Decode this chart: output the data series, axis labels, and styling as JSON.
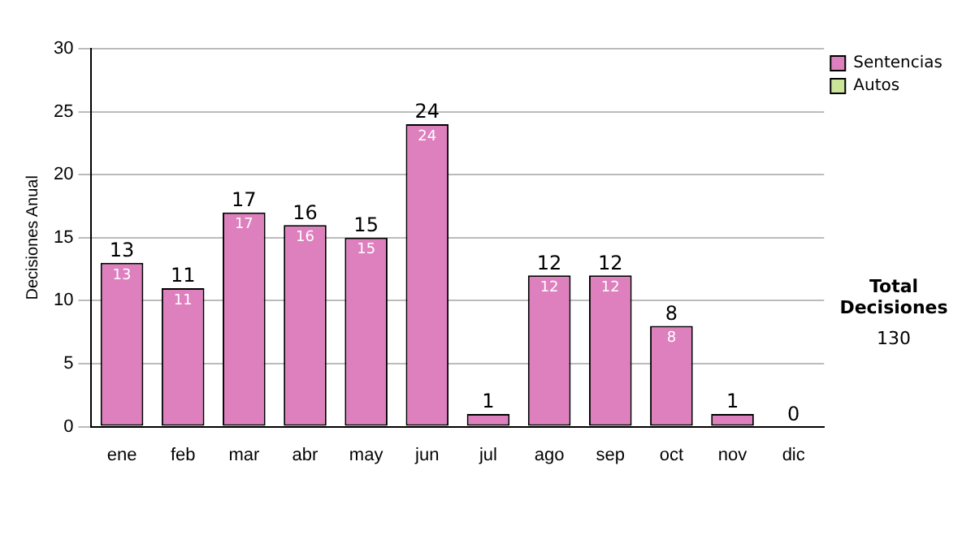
{
  "chart_data": {
    "type": "bar",
    "ylabel": "Decisiones Anual",
    "categories": [
      "ene",
      "feb",
      "mar",
      "abr",
      "may",
      "jun",
      "jul",
      "ago",
      "sep",
      "oct",
      "nov",
      "dic"
    ],
    "series": [
      {
        "name": "Sentencias",
        "color": "#de7fbe",
        "values": [
          13,
          11,
          17,
          16,
          15,
          24,
          1,
          12,
          12,
          8,
          1,
          0
        ],
        "value_labels": [
          "13",
          "11",
          "17",
          "16",
          "15",
          "24",
          null,
          "12",
          "12",
          "8",
          null,
          null
        ]
      },
      {
        "name": "Autos",
        "color": "#cce699",
        "values": [
          0,
          0,
          0,
          0,
          0,
          0,
          0,
          0,
          0,
          0,
          0,
          0
        ]
      }
    ],
    "stacked": true,
    "totals": [
      "13",
      "11",
      "17",
      "16",
      "15",
      "24",
      "1",
      "12",
      "12",
      "8",
      "1",
      "0"
    ],
    "ylim": [
      0,
      30
    ],
    "yticks": [
      0,
      5,
      10,
      15,
      20,
      25,
      30
    ],
    "grid": "y",
    "legend": "right",
    "annotations": [
      "Total Decisiones",
      "130"
    ]
  }
}
